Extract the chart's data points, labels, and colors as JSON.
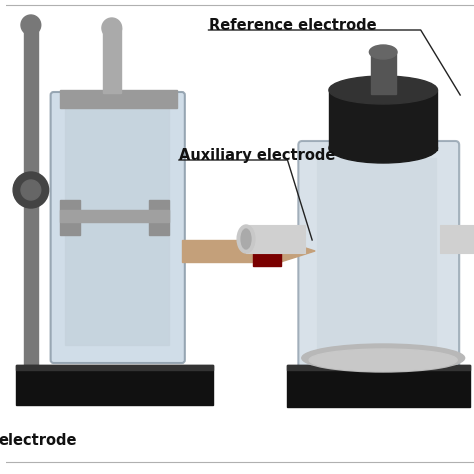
{
  "background_color": "#ffffff",
  "labels": {
    "reference_electrode": "Reference electrode",
    "auxiliary_electrode": "Auxiliary electrode",
    "bottom_electrode": "electrode"
  },
  "font_size_labels": 10.5,
  "font_weight": "bold",
  "annotation_line_color": "#222222",
  "separator_color": "#b0b0b0",
  "left_device": {
    "base_color": "#111111",
    "body_color": "#b8b8b8",
    "glass_color": "#c8d8e4",
    "glass_edge": "#8a9aa8",
    "stand_color": "#787878",
    "knob_color": "#444444",
    "brush_color": "#c4a07a",
    "collar_color": "#7a0000",
    "clamp_color": "#909090",
    "tube_color": "#aaaaaa",
    "top_color": "#9a9a9a"
  },
  "right_device": {
    "base_color": "#111111",
    "body_color": "#c0c0c0",
    "glass_color": "#ccd8e2",
    "glass_edge": "#8a9aa8",
    "top_cap_color": "#1a1a1a",
    "connector_color": "#555555",
    "tube_color": "#d0d0d0",
    "tube_edge": "#aaaaaa",
    "inner_color": "#dde0e4"
  }
}
